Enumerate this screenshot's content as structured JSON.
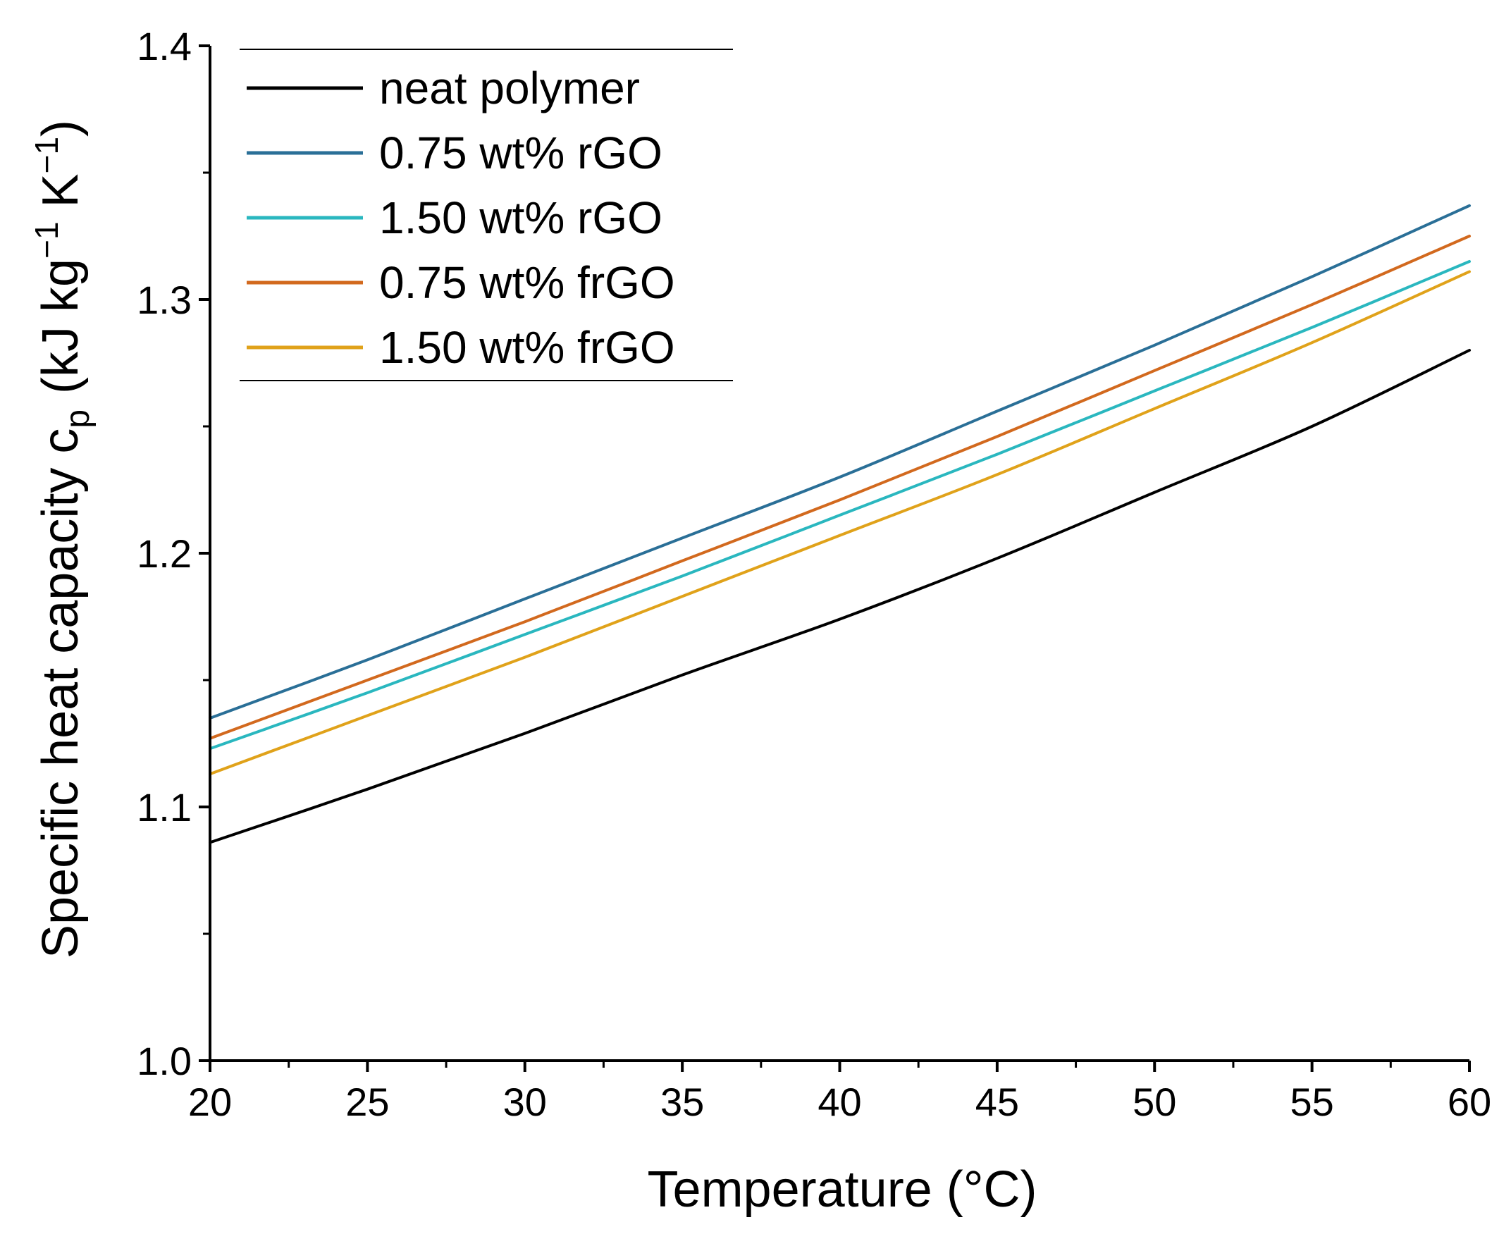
{
  "chart_data": {
    "type": "line",
    "title": "",
    "xlabel": "Temperature (°C)",
    "ylabel": {
      "main": "Specific heat capacity c",
      "sub": "p",
      "unit_open": "(kJ kg",
      "exp1": "−1",
      "unit_mid": " K",
      "exp2": "−1",
      "unit_close": ")"
    },
    "xlim": [
      20,
      60
    ],
    "ylim": [
      1.0,
      1.4
    ],
    "xticks": [
      "20",
      "25",
      "30",
      "35",
      "40",
      "45",
      "50",
      "55",
      "60"
    ],
    "yticks": [
      "1.0",
      "1.1",
      "1.2",
      "1.3",
      "1.4"
    ],
    "grid": false,
    "legend_position": "top-left",
    "x": [
      20,
      25,
      30,
      35,
      40,
      45,
      50,
      55,
      60
    ],
    "series": [
      {
        "name": "neat polymer",
        "color": "#000000",
        "values": [
          1.086,
          1.107,
          1.129,
          1.152,
          1.174,
          1.198,
          1.224,
          1.25,
          1.28
        ]
      },
      {
        "name": "0.75 wt% rGO",
        "color": "#2a6f97",
        "values": [
          1.135,
          1.158,
          1.182,
          1.206,
          1.23,
          1.256,
          1.282,
          1.309,
          1.337
        ]
      },
      {
        "name": "1.50 wt% rGO",
        "color": "#2ab7bf",
        "values": [
          1.123,
          1.145,
          1.168,
          1.191,
          1.215,
          1.239,
          1.264,
          1.289,
          1.315
        ]
      },
      {
        "name": "0.75 wt% frGO",
        "color": "#d2691e",
        "values": [
          1.127,
          1.15,
          1.173,
          1.197,
          1.221,
          1.246,
          1.272,
          1.298,
          1.325
        ]
      },
      {
        "name": "1.50 wt% frGO",
        "color": "#e0a21a",
        "values": [
          1.113,
          1.136,
          1.159,
          1.183,
          1.207,
          1.231,
          1.257,
          1.283,
          1.311
        ]
      }
    ]
  }
}
